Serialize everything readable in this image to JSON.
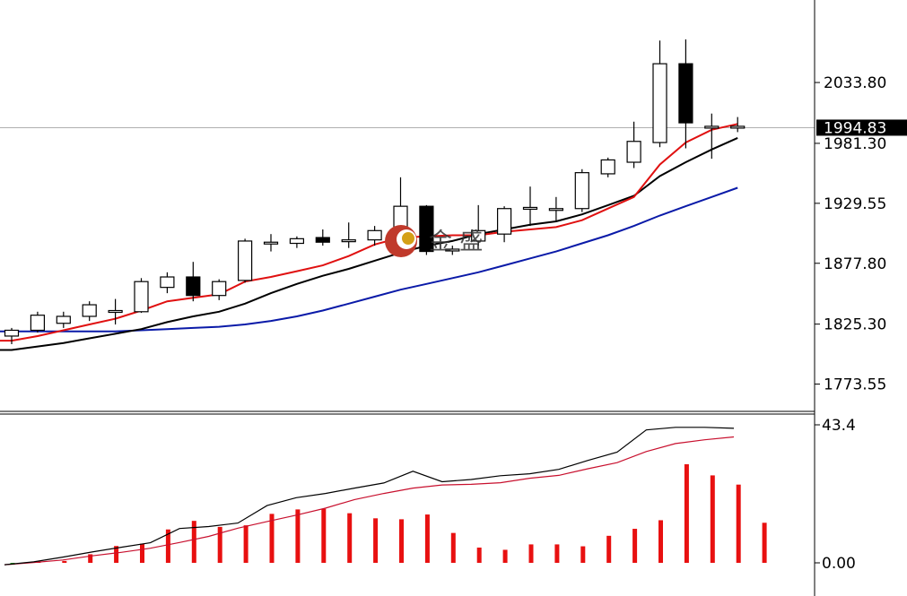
{
  "chart_data": [
    {
      "type": "candlestick",
      "y_ticks": [
        "2033.80",
        "1981.30",
        "1929.55",
        "1877.80",
        "1825.30",
        "1773.55"
      ],
      "ylim": [
        1750,
        2105
      ],
      "current_price": 1994.83,
      "current_price_label": "1994.83",
      "candles": [
        {
          "o": 1815,
          "h": 1822,
          "l": 1808,
          "c": 1820
        },
        {
          "o": 1820,
          "h": 1836,
          "l": 1818,
          "c": 1833
        },
        {
          "o": 1826,
          "h": 1836,
          "l": 1822,
          "c": 1832
        },
        {
          "o": 1832,
          "h": 1845,
          "l": 1828,
          "c": 1842
        },
        {
          "o": 1836,
          "h": 1847,
          "l": 1825,
          "c": 1837
        },
        {
          "o": 1836,
          "h": 1865,
          "l": 1835,
          "c": 1862
        },
        {
          "o": 1857,
          "h": 1870,
          "l": 1852,
          "c": 1866
        },
        {
          "o": 1866,
          "h": 1879,
          "l": 1845,
          "c": 1850
        },
        {
          "o": 1850,
          "h": 1864,
          "l": 1846,
          "c": 1862
        },
        {
          "o": 1863,
          "h": 1899,
          "l": 1861,
          "c": 1897
        },
        {
          "o": 1895,
          "h": 1903,
          "l": 1888,
          "c": 1896
        },
        {
          "o": 1895,
          "h": 1901,
          "l": 1891,
          "c": 1899
        },
        {
          "o": 1900,
          "h": 1907,
          "l": 1893,
          "c": 1896
        },
        {
          "o": 1897,
          "h": 1913,
          "l": 1891,
          "c": 1898
        },
        {
          "o": 1898,
          "h": 1910,
          "l": 1893,
          "c": 1906
        },
        {
          "o": 1905,
          "h": 1952,
          "l": 1900,
          "c": 1927
        },
        {
          "o": 1927,
          "h": 1928,
          "l": 1885,
          "c": 1888
        },
        {
          "o": 1889,
          "h": 1893,
          "l": 1885,
          "c": 1890
        },
        {
          "o": 1897,
          "h": 1928,
          "l": 1893,
          "c": 1906
        },
        {
          "o": 1903,
          "h": 1927,
          "l": 1896,
          "c": 1925
        },
        {
          "o": 1925,
          "h": 1944,
          "l": 1910,
          "c": 1926
        },
        {
          "o": 1925,
          "h": 1935,
          "l": 1914,
          "c": 1925
        },
        {
          "o": 1925,
          "h": 1959,
          "l": 1922,
          "c": 1956
        },
        {
          "o": 1955,
          "h": 1969,
          "l": 1952,
          "c": 1967
        },
        {
          "o": 1965,
          "h": 2000,
          "l": 1960,
          "c": 1983
        },
        {
          "o": 1982,
          "h": 2070,
          "l": 1978,
          "c": 2050
        },
        {
          "o": 2050,
          "h": 2071,
          "l": 1977,
          "c": 1999
        },
        {
          "o": 1995,
          "h": 2007,
          "l": 1968,
          "c": 1996
        },
        {
          "o": 1995,
          "h": 2004,
          "l": 1991,
          "c": 1996
        }
      ],
      "ma_fast": [
        1811,
        1815,
        1820,
        1825,
        1830,
        1837,
        1845,
        1848,
        1851,
        1862,
        1866,
        1871,
        1876,
        1884,
        1894,
        1900,
        1901,
        1902,
        1902,
        1905,
        1907,
        1909,
        1915,
        1925,
        1935,
        1963,
        1982,
        1993,
        1998
      ],
      "ma_mid": [
        1803,
        1806,
        1809,
        1813,
        1817,
        1821,
        1827,
        1832,
        1836,
        1843,
        1852,
        1860,
        1867,
        1873,
        1880,
        1887,
        1893,
        1897,
        1903,
        1907,
        1911,
        1914,
        1920,
        1928,
        1936,
        1953,
        1965,
        1976,
        1986
      ],
      "ma_slow": [
        1819,
        1819,
        1819,
        1819,
        1819,
        1820,
        1821,
        1822,
        1823,
        1825,
        1828,
        1832,
        1837,
        1843,
        1849,
        1855,
        1860,
        1865,
        1870,
        1876,
        1882,
        1888,
        1895,
        1902,
        1910,
        1919,
        1927,
        1935,
        1943
      ],
      "colors": {
        "ma_fast": "#e01010",
        "ma_mid": "#000000",
        "ma_slow": "#0a1aa8",
        "bear_body": "#000000",
        "bull_body": "#ffffff",
        "hline": "#b0b0b0"
      }
    },
    {
      "type": "bar+line",
      "y_ticks": [
        "43.4",
        "0.00"
      ],
      "ylim": [
        0,
        43.4
      ],
      "histogram": [
        -0.6,
        0.3,
        0.6,
        2.7,
        5.3,
        6.0,
        10.5,
        13.2,
        11.3,
        11.8,
        15.4,
        16.8,
        17.0,
        15.6,
        14.0,
        13.7,
        15.2,
        9.4,
        4.8,
        4.1,
        5.8,
        5.8,
        5.2,
        8.5,
        10.7,
        13.4,
        31.0,
        27.5,
        24.6,
        12.6
      ],
      "line_main": [
        -0.6,
        0.3,
        1.8,
        3.4,
        4.9,
        6.3,
        10.8,
        11.4,
        12.5,
        18.0,
        20.5,
        21.8,
        23.5,
        25.1,
        28.8,
        25.5,
        26.2,
        27.4,
        28.0,
        29.4,
        32.2,
        34.8,
        41.8,
        42.6,
        42.6,
        42.3
      ],
      "line_signal": [
        -0.6,
        0.1,
        0.9,
        2.2,
        3.3,
        4.6,
        6.4,
        8.3,
        10.9,
        13.0,
        15.0,
        17.2,
        19.9,
        21.8,
        23.5,
        24.5,
        24.7,
        25.2,
        26.6,
        27.5,
        29.6,
        31.5,
        35.0,
        37.5,
        38.7,
        39.6
      ],
      "colors": {
        "line_main": "#000000",
        "line_signal": "#c8102e",
        "bar_pos": "#e81010",
        "bar_neg": "#22b022"
      }
    }
  ],
  "watermark": {
    "text": "金 盛"
  }
}
